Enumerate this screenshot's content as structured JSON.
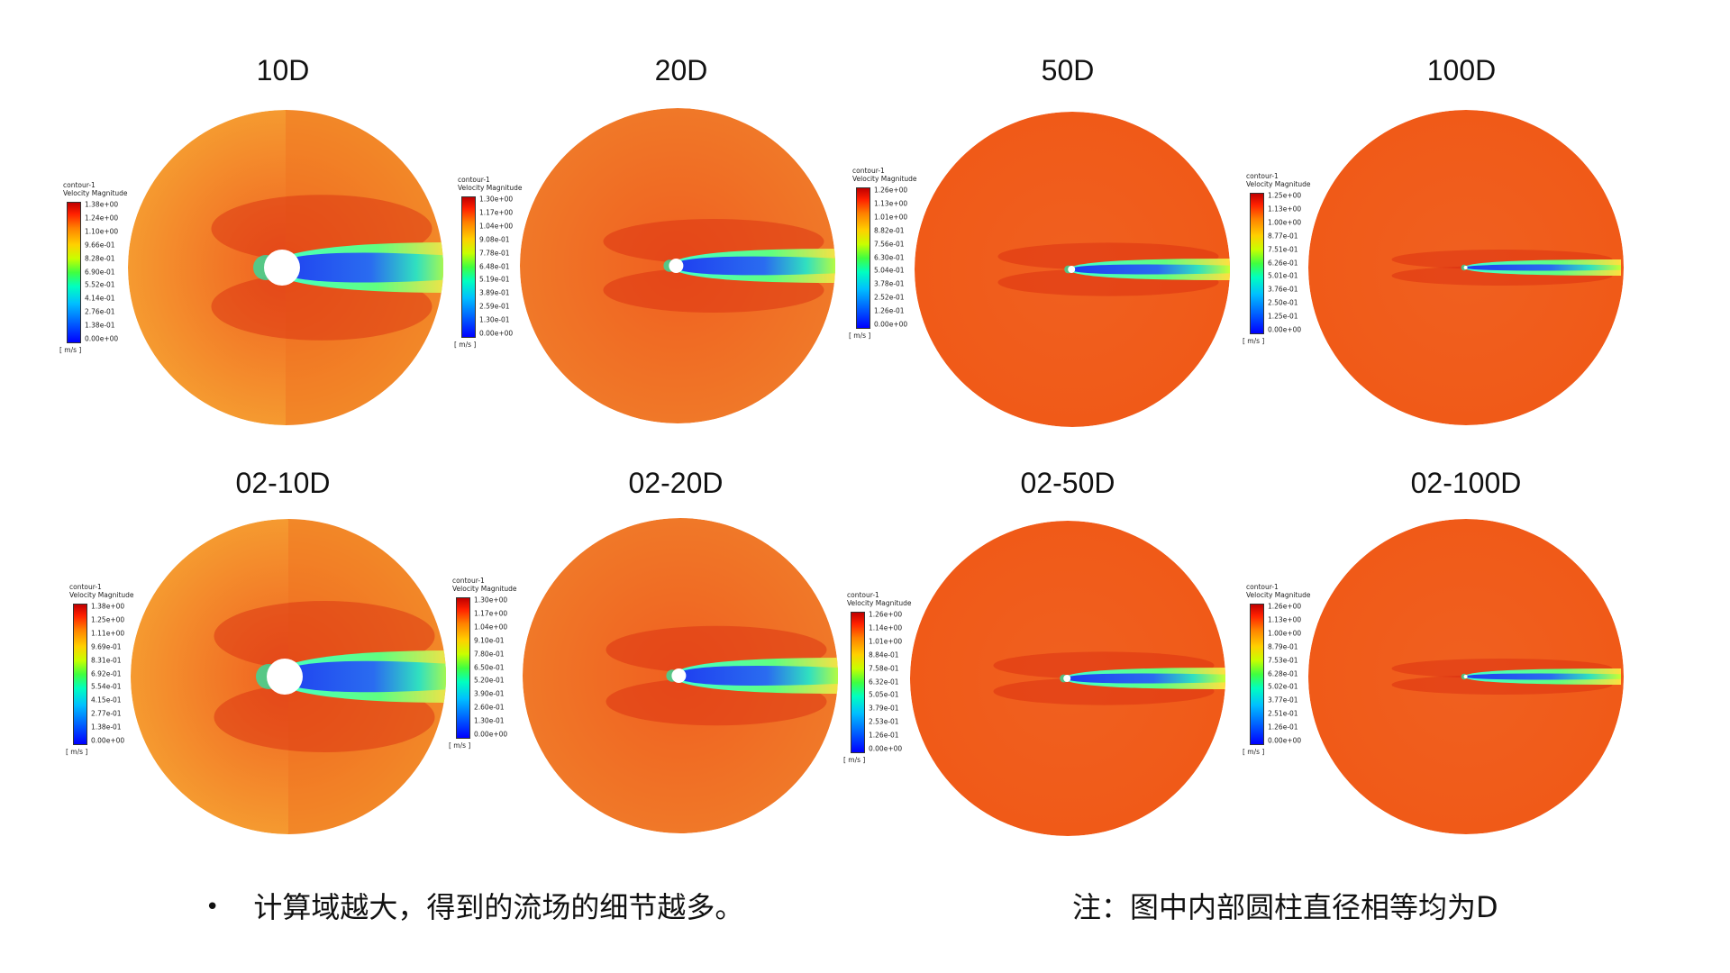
{
  "colors": {
    "far_field_orange": "#f0601e",
    "wake_blue": "#1e3cf0",
    "colormap_min": "#0000ff",
    "colormap_max": "#c00000"
  },
  "panels": [
    {
      "title": "10D",
      "legend": {
        "line1": "contour-1",
        "line2": "Velocity Magnitude",
        "unit": "[ m/s ]",
        "ticks": [
          "1.38e+00",
          "1.24e+00",
          "1.10e+00",
          "9.66e-01",
          "8.28e-01",
          "6.90e-01",
          "5.52e-01",
          "4.14e-01",
          "2.76e-01",
          "1.38e-01",
          "0.00e+00"
        ]
      }
    },
    {
      "title": "20D",
      "legend": {
        "line1": "contour-1",
        "line2": "Velocity Magnitude",
        "unit": "[ m/s ]",
        "ticks": [
          "1.30e+00",
          "1.17e+00",
          "1.04e+00",
          "9.08e-01",
          "7.78e-01",
          "6.48e-01",
          "5.19e-01",
          "3.89e-01",
          "2.59e-01",
          "1.30e-01",
          "0.00e+00"
        ]
      }
    },
    {
      "title": "50D",
      "legend": {
        "line1": "contour-1",
        "line2": "Velocity Magnitude",
        "unit": "[ m/s ]",
        "ticks": [
          "1.26e+00",
          "1.13e+00",
          "1.01e+00",
          "8.82e-01",
          "7.56e-01",
          "6.30e-01",
          "5.04e-01",
          "3.78e-01",
          "2.52e-01",
          "1.26e-01",
          "0.00e+00"
        ]
      }
    },
    {
      "title": "100D",
      "legend": {
        "line1": "contour-1",
        "line2": "Velocity Magnitude",
        "unit": "[ m/s ]",
        "ticks": [
          "1.25e+00",
          "1.13e+00",
          "1.00e+00",
          "8.77e-01",
          "7.51e-01",
          "6.26e-01",
          "5.01e-01",
          "3.76e-01",
          "2.50e-01",
          "1.25e-01",
          "0.00e+00"
        ]
      }
    },
    {
      "title": "02-10D",
      "legend": {
        "line1": "contour-1",
        "line2": "Velocity Magnitude",
        "unit": "[ m/s ]",
        "ticks": [
          "1.38e+00",
          "1.25e+00",
          "1.11e+00",
          "9.69e-01",
          "8.31e-01",
          "6.92e-01",
          "5.54e-01",
          "4.15e-01",
          "2.77e-01",
          "1.38e-01",
          "0.00e+00"
        ]
      }
    },
    {
      "title": "02-20D",
      "legend": {
        "line1": "contour-1",
        "line2": "Velocity Magnitude",
        "unit": "[ m/s ]",
        "ticks": [
          "1.30e+00",
          "1.17e+00",
          "1.04e+00",
          "9.10e-01",
          "7.80e-01",
          "6.50e-01",
          "5.20e-01",
          "3.90e-01",
          "2.60e-01",
          "1.30e-01",
          "0.00e+00"
        ]
      }
    },
    {
      "title": "02-50D",
      "legend": {
        "line1": "contour-1",
        "line2": "Velocity Magnitude",
        "unit": "[ m/s ]",
        "ticks": [
          "1.26e+00",
          "1.14e+00",
          "1.01e+00",
          "8.84e-01",
          "7.58e-01",
          "6.32e-01",
          "5.05e-01",
          "3.79e-01",
          "2.53e-01",
          "1.26e-01",
          "0.00e+00"
        ]
      }
    },
    {
      "title": "02-100D",
      "legend": {
        "line1": "contour-1",
        "line2": "Velocity Magnitude",
        "unit": "[ m/s ]",
        "ticks": [
          "1.26e+00",
          "1.13e+00",
          "1.00e+00",
          "8.79e-01",
          "7.53e-01",
          "6.28e-01",
          "5.02e-01",
          "3.77e-01",
          "2.51e-01",
          "1.26e-01",
          "0.00e+00"
        ]
      }
    }
  ],
  "footer": {
    "bullet_text": "计算域越大，得到的流场的细节越多。",
    "note_text": "注：图中内部圆柱直径相等均为D"
  }
}
